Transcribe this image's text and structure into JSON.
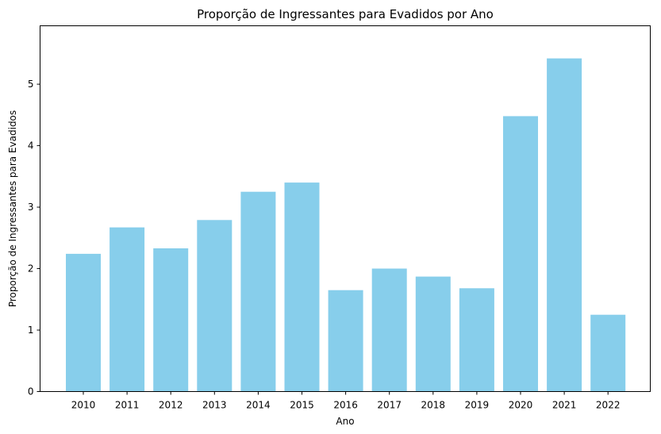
{
  "chart_data": {
    "type": "bar",
    "title": "Proporção de Ingressantes para Evadidos por Ano",
    "xlabel": "Ano",
    "ylabel": "Proporção de Ingressantes para Evadidos",
    "categories": [
      "2010",
      "2011",
      "2012",
      "2013",
      "2014",
      "2015",
      "2016",
      "2017",
      "2018",
      "2019",
      "2020",
      "2021",
      "2022"
    ],
    "values": [
      2.24,
      2.67,
      2.33,
      2.79,
      3.25,
      3.4,
      1.65,
      2.0,
      1.87,
      1.68,
      4.48,
      5.42,
      1.25
    ],
    "yticks": [
      "0",
      "1",
      "2",
      "3",
      "4",
      "5"
    ],
    "ylim": [
      0,
      5.95
    ],
    "grid": false,
    "bar_color": "#87ceeb"
  }
}
